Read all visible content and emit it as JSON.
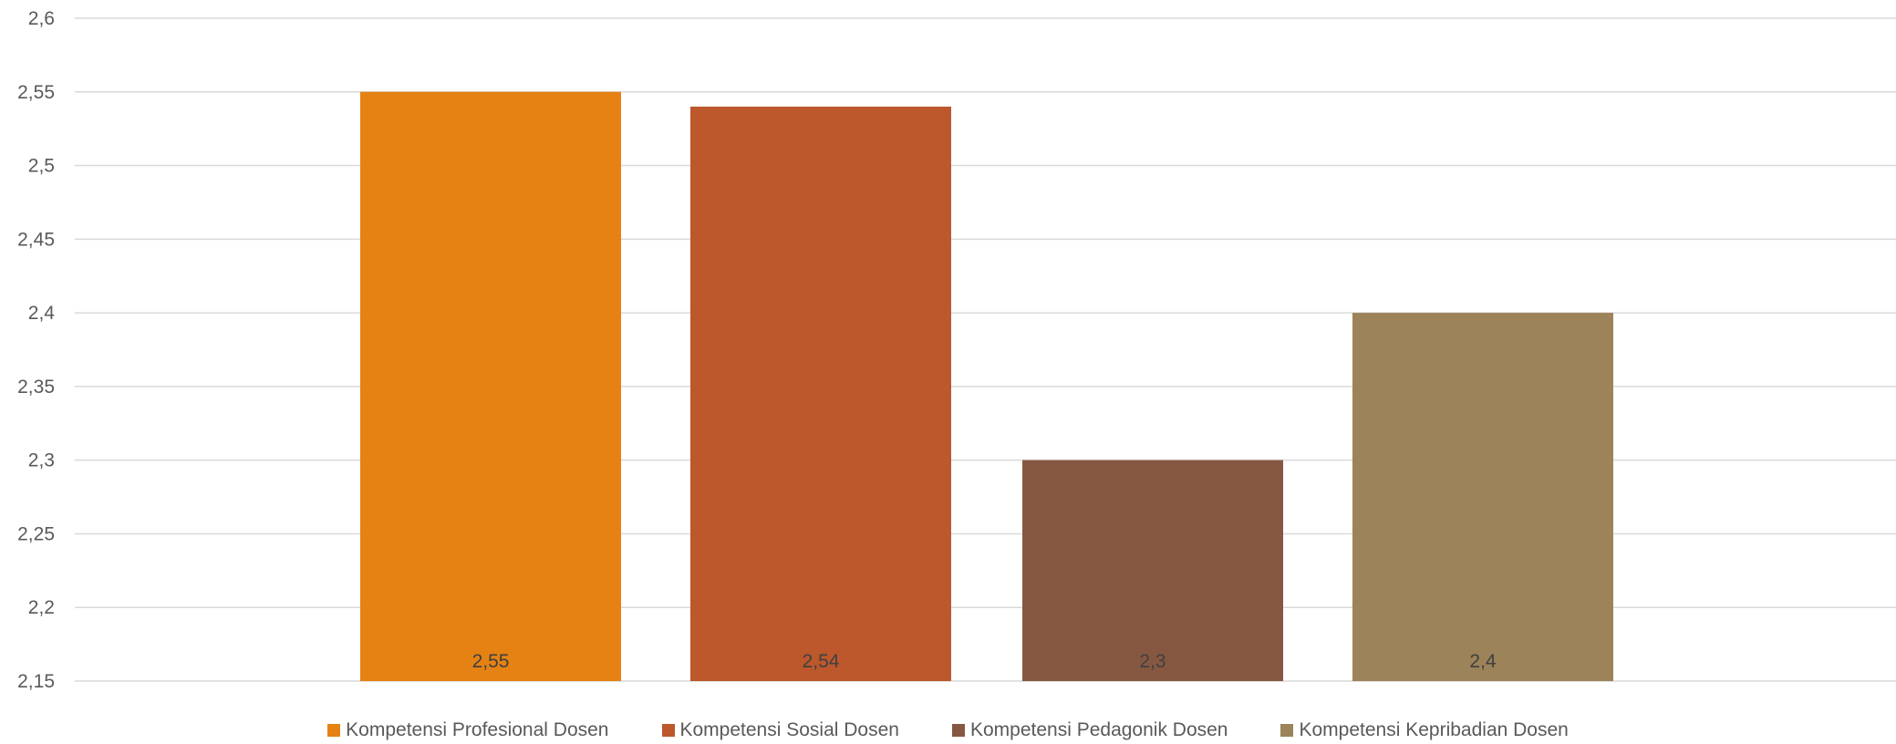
{
  "chart_data": {
    "type": "bar",
    "title": "",
    "xlabel": "",
    "ylabel": "",
    "ylim": [
      2.15,
      2.6
    ],
    "yticks": [
      "2,15",
      "2,2",
      "2,25",
      "2,3",
      "2,35",
      "2,4",
      "2,45",
      "2,5",
      "2,55",
      "2,6"
    ],
    "grid": true,
    "legend_position": "bottom",
    "series": [
      {
        "name": "Kompetensi Profesional Dosen",
        "value": 2.55,
        "label": "2,55",
        "color": "#E58213"
      },
      {
        "name": "Kompetensi Sosial Dosen",
        "value": 2.54,
        "label": "2,54",
        "color": "#BC582C"
      },
      {
        "name": "Kompetensi Pedagonik Dosen",
        "value": 2.3,
        "label": "2,3",
        "color": "#865842"
      },
      {
        "name": "Kompetensi Kepribadian Dosen",
        "value": 2.4,
        "label": "2,4",
        "color": "#9C8359"
      }
    ]
  }
}
